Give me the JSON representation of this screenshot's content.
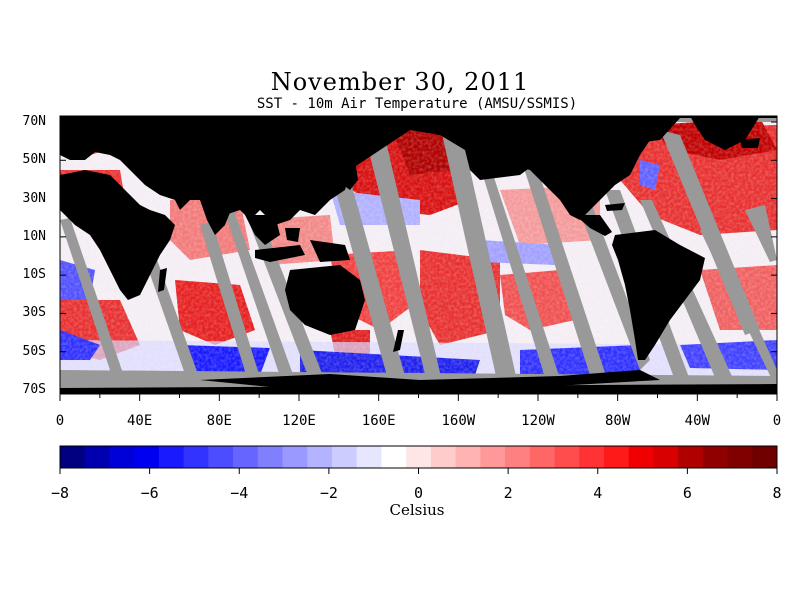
{
  "title": "November 30, 2011",
  "subtitle": "SST - 10m Air Temperature (AMSU/SSMIS)",
  "map": {
    "lat_labels": [
      "70N",
      "50N",
      "30N",
      "10N",
      "10S",
      "30S",
      "50S",
      "70S"
    ],
    "lon_labels": [
      "0",
      "40E",
      "80E",
      "120E",
      "160E",
      "160W",
      "120W",
      "80W",
      "40W",
      "0"
    ],
    "colors": {
      "land": "#000000",
      "no_data": "#999999",
      "ocean_neutral": "#f4f0f4"
    }
  },
  "colorbar": {
    "ticks": [
      "−8",
      "−6",
      "−4",
      "−2",
      "0",
      "2",
      "4",
      "6",
      "8"
    ],
    "unit": "Celsius",
    "min": -8,
    "max": 8,
    "colors": [
      "#000080",
      "#0000b0",
      "#0000d8",
      "#0000f0",
      "#1a1aff",
      "#3333ff",
      "#4d4dff",
      "#6666ff",
      "#8080ff",
      "#9999ff",
      "#b3b3ff",
      "#ccccff",
      "#e6e6ff",
      "#ffffff",
      "#ffe6e6",
      "#ffcccc",
      "#ffb3b3",
      "#ff9999",
      "#ff8080",
      "#ff6666",
      "#ff4d4d",
      "#ff3333",
      "#ff1a1a",
      "#f00000",
      "#d80000",
      "#b00000",
      "#900000",
      "#800000",
      "#700000"
    ]
  }
}
